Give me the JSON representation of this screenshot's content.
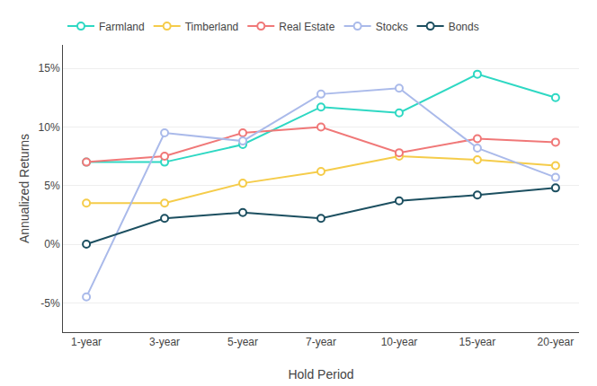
{
  "chart_data": {
    "type": "line",
    "categories": [
      "1-year",
      "3-year",
      "5-year",
      "7-year",
      "10-year",
      "15-year",
      "20-year"
    ],
    "series": [
      {
        "name": "Farmland",
        "color": "#2ED8C3",
        "marker": "o",
        "values": [
          7.0,
          7.0,
          8.5,
          11.7,
          11.2,
          14.5,
          12.5
        ]
      },
      {
        "name": "Timberland",
        "color": "#F5CC4A",
        "marker": "o",
        "values": [
          3.5,
          3.5,
          5.2,
          6.2,
          7.5,
          7.2,
          6.7
        ]
      },
      {
        "name": "Real Estate",
        "color": "#F07878",
        "marker": "o",
        "values": [
          7.0,
          7.5,
          9.5,
          10.0,
          7.8,
          9.0,
          8.7
        ]
      },
      {
        "name": "Stocks",
        "color": "#AABAEA",
        "marker": "o",
        "values": [
          -4.5,
          9.5,
          8.8,
          12.8,
          13.3,
          8.2,
          5.7
        ]
      },
      {
        "name": "Bonds",
        "color": "#1C4F60",
        "marker": "o",
        "values": [
          0.0,
          2.2,
          2.7,
          2.2,
          3.7,
          4.2,
          4.8
        ]
      }
    ],
    "xlabel": "Hold Period",
    "ylabel": "Annualized Returns",
    "ylim": [
      -7.5,
      17
    ],
    "yticks": [
      {
        "value": -5,
        "label": "-5%"
      },
      {
        "value": 0,
        "label": "0%"
      },
      {
        "value": 5,
        "label": "5%"
      },
      {
        "value": 10,
        "label": "10%"
      },
      {
        "value": 15,
        "label": "15%"
      }
    ],
    "grid": true,
    "legend": "upper left"
  }
}
